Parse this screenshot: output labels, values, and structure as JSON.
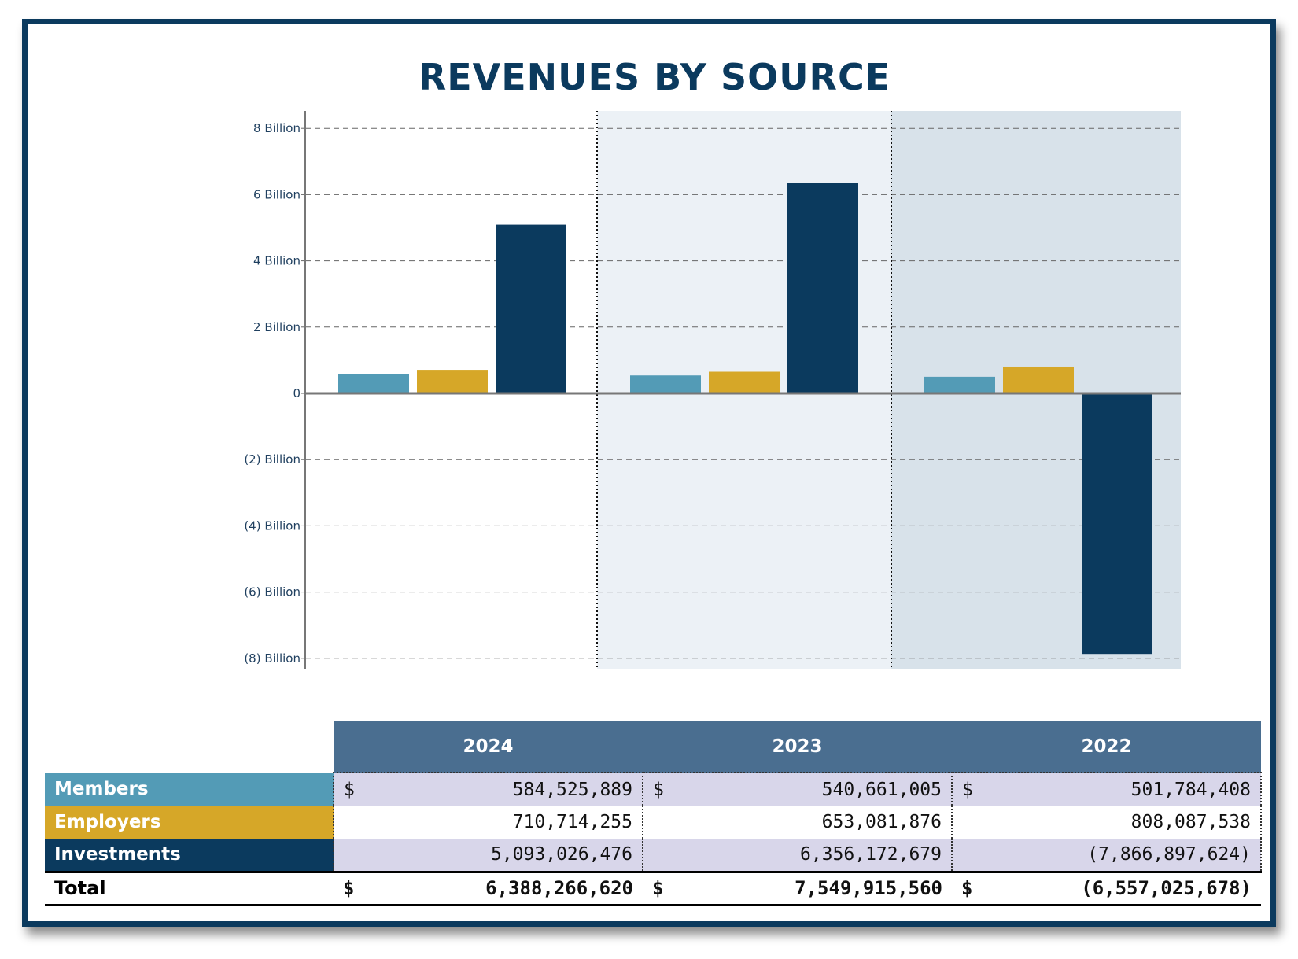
{
  "chart_data": {
    "type": "bar",
    "title": "REVENUES BY SOURCE",
    "categories": [
      "2024",
      "2023",
      "2022"
    ],
    "series": [
      {
        "name": "Members",
        "color": "#539bb6",
        "values": [
          584525889,
          540661005,
          501784408
        ]
      },
      {
        "name": "Employers",
        "color": "#d6a728",
        "values": [
          710714255,
          653081876,
          808087538
        ]
      },
      {
        "name": "Investments",
        "color": "#0b3a5e",
        "values": [
          5093026476,
          6356172679,
          -7866897624
        ]
      }
    ],
    "ylim": [
      -8500000000,
      8500000000
    ],
    "yticks": [
      8000000000,
      6000000000,
      4000000000,
      2000000000,
      0,
      -2000000000,
      -4000000000,
      -6000000000,
      -8000000000
    ],
    "ytick_labels": [
      "8 Billion",
      "6 Billion",
      "4 Billion",
      "2 Billion",
      "0",
      "(2) Billion",
      "(4) Billion",
      "(6) Billion",
      "(8) Billion"
    ],
    "grid": true,
    "xlabel": "",
    "ylabel": ""
  },
  "table": {
    "years": [
      "2024",
      "2023",
      "2022"
    ],
    "rows": [
      {
        "label": "Members",
        "cells": [
          {
            "cur": "$",
            "val": "584,525,889"
          },
          {
            "cur": "$",
            "val": "540,661,005"
          },
          {
            "cur": "$",
            "val": "501,784,408"
          }
        ]
      },
      {
        "label": "Employers",
        "cells": [
          {
            "cur": "",
            "val": "710,714,255"
          },
          {
            "cur": "",
            "val": "653,081,876"
          },
          {
            "cur": "",
            "val": "808,087,538"
          }
        ]
      },
      {
        "label": "Investments",
        "cells": [
          {
            "cur": "",
            "val": "5,093,026,476"
          },
          {
            "cur": "",
            "val": "6,356,172,679"
          },
          {
            "cur": "",
            "val": "(7,866,897,624)"
          }
        ]
      }
    ],
    "total": {
      "label": "Total",
      "cells": [
        {
          "cur": "$",
          "val": "6,388,266,620"
        },
        {
          "cur": "$",
          "val": "7,549,915,560"
        },
        {
          "cur": "$",
          "val": "(6,557,025,678)"
        }
      ]
    }
  },
  "colors": {
    "navy": "#0b3a5e",
    "band2023": "#ecf1f6",
    "band2022": "#d8e2ea"
  }
}
